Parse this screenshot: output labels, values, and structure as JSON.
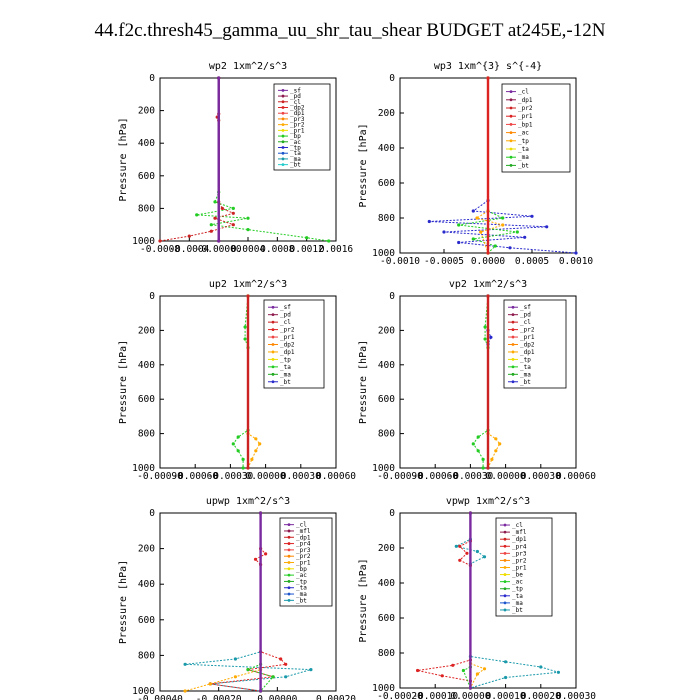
{
  "title": "44.f2c.thresh45_gamma_uu_shr_tau_shear  BUDGET at245E,-12N",
  "chart_data": [
    {
      "type": "line",
      "title": "wp2   1xm^2/s^3",
      "ylabel": "Pressure [hPa]",
      "ylim": [
        1000,
        0
      ],
      "xlim": [
        -0.0008,
        0.0016
      ],
      "xticks": [
        "-0.0008",
        "-0.0004",
        "-0.00000",
        "0.0004",
        "0.0008",
        "0.0012",
        "0.0016"
      ],
      "yticks": [
        "0",
        "200",
        "400",
        "600",
        "800",
        "1000"
      ],
      "legend": {
        "position": "top-right",
        "entries": [
          "_sf",
          "_pd",
          "_cl",
          "_dp2",
          "_dp1",
          "_pr3",
          "_pr2",
          "_pr1",
          "_bp",
          "_ac",
          "_tp",
          "_ta",
          "_ma",
          "_bt"
        ]
      },
      "series": [
        {
          "name": "_ac",
          "color": "#22cc22",
          "points": [
            [
              0,
              0
            ],
            [
              0,
              700
            ],
            [
              -5e-05,
              760
            ],
            [
              0.0002,
              800
            ],
            [
              -0.0003,
              840
            ],
            [
              0.0004,
              860
            ],
            [
              -0.0001,
              900
            ],
            [
              0.0004,
              930
            ],
            [
              0.0012,
              980
            ],
            [
              0.0015,
              1000
            ]
          ]
        },
        {
          "name": "_dp1",
          "color": "#cc2222",
          "points": [
            [
              0,
              0
            ],
            [
              0,
              220
            ],
            [
              -2e-05,
              240
            ],
            [
              0,
              260
            ],
            [
              0,
              760
            ],
            [
              5e-05,
              800
            ],
            [
              0.0002,
              830
            ],
            [
              -5e-05,
              860
            ],
            [
              0.0002,
              900
            ],
            [
              -0.0001,
              940
            ],
            [
              -0.0004,
              970
            ],
            [
              -0.0008,
              1000
            ]
          ]
        },
        {
          "name": "_pd",
          "color": "#8e1a4e",
          "points": [
            [
              0,
              0
            ],
            [
              0,
              1000
            ]
          ]
        },
        {
          "name": "_sf",
          "color": "#7a2a9e",
          "points": [
            [
              0,
              0
            ],
            [
              0,
              1000
            ]
          ]
        }
      ]
    },
    {
      "type": "line",
      "title": "wp3   1xm^{3} s^{-4}",
      "ylabel": "Pressure [hPa]",
      "ylim": [
        1000,
        0
      ],
      "xlim": [
        -0.0012,
        0.0012
      ],
      "xticks": [
        "-0.0010",
        "-0.0005",
        "0.0000",
        "0.0005",
        "0.0010"
      ],
      "yticks": [
        "0",
        "200",
        "400",
        "600",
        "800",
        "1000"
      ],
      "legend": {
        "position": "top-right",
        "entries": [
          "_cl",
          "_dp1",
          "_pr2",
          "_pr1",
          "_bp1",
          "_ac",
          "_tp",
          "_ta",
          "_ma",
          "_bt"
        ]
      },
      "series": [
        {
          "name": "_tp",
          "color": "#2a2acc",
          "points": [
            [
              0,
              0
            ],
            [
              0,
              700
            ],
            [
              -0.0002,
              760
            ],
            [
              0.0006,
              790
            ],
            [
              -0.0008,
              820
            ],
            [
              0.0008,
              850
            ],
            [
              -0.0006,
              880
            ],
            [
              0.0005,
              910
            ],
            [
              -0.0004,
              940
            ],
            [
              0.0003,
              970
            ],
            [
              0.0012,
              1000
            ]
          ]
        },
        {
          "name": "_ac",
          "color": "#22cc22",
          "points": [
            [
              0,
              0
            ],
            [
              0,
              760
            ],
            [
              0.0002,
              800
            ],
            [
              -0.0004,
              840
            ],
            [
              0.0004,
              880
            ],
            [
              -0.0002,
              920
            ],
            [
              0.0001,
              960
            ],
            [
              0,
              1000
            ]
          ]
        },
        {
          "name": "_pr2",
          "color": "#ffaa00",
          "points": [
            [
              0,
              0
            ],
            [
              0,
              760
            ],
            [
              -0.00015,
              800
            ],
            [
              0.0002,
              840
            ],
            [
              -0.0001,
              880
            ],
            [
              0,
              1000
            ]
          ]
        },
        {
          "name": "_dp1",
          "color": "#dd2222",
          "points": [
            [
              0,
              0
            ],
            [
              0,
              1000
            ]
          ]
        }
      ]
    },
    {
      "type": "line",
      "title": "up2   1xm^2/s^3",
      "ylabel": "Pressure [hPa]",
      "ylim": [
        1000,
        0
      ],
      "xlim": [
        -0.0009,
        0.0009
      ],
      "xticks": [
        "-0.00090",
        "-0.00060",
        "-0.00030",
        "0.00000",
        "0.00030",
        "0.00060"
      ],
      "yticks": [
        "0",
        "200",
        "400",
        "600",
        "800",
        "1000"
      ],
      "legend": {
        "position": "top-right",
        "entries": [
          "_sf",
          "_pd",
          "_cl",
          "_pr2",
          "_pr1",
          "_dp2",
          "_dp1",
          "_tp",
          "_ta",
          "_ma",
          "_bt"
        ]
      },
      "series": [
        {
          "name": "_dp1",
          "color": "#22cc22",
          "points": [
            [
              0,
              0
            ],
            [
              -3e-05,
              180
            ],
            [
              -3e-05,
              250
            ],
            [
              0,
              300
            ],
            [
              0,
              780
            ],
            [
              -0.0001,
              820
            ],
            [
              -0.00015,
              860
            ],
            [
              -0.0001,
              900
            ],
            [
              -5e-05,
              950
            ],
            [
              -5e-05,
              1000
            ]
          ]
        },
        {
          "name": "_pr2",
          "color": "#ffaa00",
          "points": [
            [
              0,
              0
            ],
            [
              0,
              800
            ],
            [
              8e-05,
              830
            ],
            [
              0.00012,
              860
            ],
            [
              8e-05,
              900
            ],
            [
              4e-05,
              950
            ],
            [
              0,
              1000
            ]
          ]
        },
        {
          "name": "_pd",
          "color": "#cc2222",
          "points": [
            [
              0,
              0
            ],
            [
              0,
              1000
            ]
          ]
        }
      ]
    },
    {
      "type": "line",
      "title": "vp2   1xm^2/s^3",
      "ylabel": "Pressure [hPa]",
      "ylim": [
        1000,
        0
      ],
      "xlim": [
        -0.0009,
        0.0009
      ],
      "xticks": [
        "-0.00090",
        "-0.00060",
        "-0.00030",
        "0.00000",
        "0.00030",
        "0.00060"
      ],
      "yticks": [
        "0",
        "200",
        "400",
        "600",
        "800",
        "1000"
      ],
      "legend": {
        "position": "top-right",
        "entries": [
          "_sf",
          "_pd",
          "_cl",
          "_pr2",
          "_pr1",
          "_dp2",
          "_dp1",
          "_tp",
          "_ta",
          "_ma",
          "_bt"
        ]
      },
      "series": [
        {
          "name": "_dp1",
          "color": "#22cc22",
          "points": [
            [
              0,
              0
            ],
            [
              -3e-05,
              180
            ],
            [
              -3e-05,
              250
            ],
            [
              0,
              300
            ],
            [
              0,
              780
            ],
            [
              -0.0001,
              820
            ],
            [
              -0.00015,
              860
            ],
            [
              -0.0001,
              900
            ],
            [
              -5e-05,
              950
            ],
            [
              -5e-05,
              1000
            ]
          ]
        },
        {
          "name": "_pr2",
          "color": "#ffaa00",
          "points": [
            [
              0,
              0
            ],
            [
              0,
              800
            ],
            [
              8e-05,
              830
            ],
            [
              0.00012,
              860
            ],
            [
              8e-05,
              900
            ],
            [
              4e-05,
              950
            ],
            [
              0,
              1000
            ]
          ]
        },
        {
          "name": "_tp",
          "color": "#2a2acc",
          "points": [
            [
              0,
              0
            ],
            [
              0,
              200
            ],
            [
              3e-05,
              240
            ],
            [
              0,
              280
            ],
            [
              0,
              1000
            ]
          ]
        },
        {
          "name": "_pd",
          "color": "#cc2222",
          "points": [
            [
              0,
              0
            ],
            [
              0,
              1000
            ]
          ]
        }
      ]
    },
    {
      "type": "line",
      "title": "upwp   1xm^2/s^3",
      "ylabel": "Pressure [hPa]",
      "ylim": [
        1000,
        0
      ],
      "xlim": [
        -0.0004,
        0.0003
      ],
      "xticks": [
        "-0.00040",
        "-0.00020",
        "0.00000",
        "0.00020"
      ],
      "yticks": [
        "0",
        "200",
        "400",
        "600",
        "800",
        "1000"
      ],
      "legend": {
        "position": "top-right",
        "entries": [
          "_cl",
          "_mfl",
          "_dp1",
          "_pr4",
          "_pr3",
          "_pr2",
          "_pr1",
          "_bp",
          "_ac",
          "_tp",
          "_ta",
          "_ma",
          "_bt"
        ]
      },
      "series": [
        {
          "name": "_tp",
          "color": "#1a99aa",
          "points": [
            [
              0,
              0
            ],
            [
              0,
              780
            ],
            [
              -0.0001,
              820
            ],
            [
              -0.0003,
              850
            ],
            [
              0.0002,
              880
            ],
            [
              0.0001,
              920
            ],
            [
              -0.0002,
              960
            ],
            [
              0,
              1000
            ]
          ]
        },
        {
          "name": "_pr4",
          "color": "#dd2222",
          "points": [
            [
              0,
              0
            ],
            [
              0,
              200
            ],
            [
              2e-05,
              230
            ],
            [
              -2e-05,
              260
            ],
            [
              0,
              290
            ],
            [
              0,
              780
            ],
            [
              8e-05,
              820
            ],
            [
              0.0001,
              850
            ],
            [
              -5e-05,
              880
            ],
            [
              5e-05,
              920
            ],
            [
              -0.0002,
              960
            ],
            [
              0,
              1000
            ]
          ]
        },
        {
          "name": "_pr2",
          "color": "#ffaa00",
          "points": [
            [
              0,
              0
            ],
            [
              0,
              880
            ],
            [
              -0.0001,
              920
            ],
            [
              -0.0002,
              960
            ],
            [
              -0.0003,
              1000
            ]
          ]
        },
        {
          "name": "_ac",
          "color": "#22cc22",
          "points": [
            [
              0,
              0
            ],
            [
              0,
              850
            ],
            [
              -5e-05,
              880
            ],
            [
              5e-05,
              920
            ],
            [
              0,
              1000
            ]
          ]
        },
        {
          "name": "_cl",
          "color": "#7a2a9e",
          "points": [
            [
              0,
              0
            ],
            [
              0,
              1000
            ]
          ]
        }
      ]
    },
    {
      "type": "line",
      "title": "vpwp   1xm^2/s^3",
      "ylabel": "Pressure [hPa]",
      "ylim": [
        1000,
        0
      ],
      "xlim": [
        -0.0002,
        0.0003
      ],
      "xticks": [
        "-0.00020",
        "-0.00010",
        "0.00000",
        "0.00010",
        "0.00020",
        "0.00030"
      ],
      "yticks": [
        "0",
        "200",
        "400",
        "600",
        "800",
        "1000"
      ],
      "legend": {
        "position": "top-right",
        "entries": [
          "_cl",
          "_mfl",
          "_dp1",
          "_pr4",
          "_pr3",
          "_pr2",
          "_pr1",
          "_be",
          "_ac",
          "_tp",
          "_ta",
          "_ma",
          "_bt"
        ]
      },
      "series": [
        {
          "name": "_tp",
          "color": "#1a99aa",
          "points": [
            [
              0,
              0
            ],
            [
              0,
              150
            ],
            [
              -4e-05,
              190
            ],
            [
              2e-05,
              220
            ],
            [
              4e-05,
              250
            ],
            [
              0,
              290
            ],
            [
              0,
              820
            ],
            [
              0.0001,
              850
            ],
            [
              0.0002,
              880
            ],
            [
              0.00025,
              910
            ],
            [
              0.0001,
              940
            ],
            [
              0,
              1000
            ]
          ]
        },
        {
          "name": "_pr4",
          "color": "#dd2222",
          "points": [
            [
              0,
              0
            ],
            [
              0,
              160
            ],
            [
              -3e-05,
              190
            ],
            [
              -1e-05,
              230
            ],
            [
              -3e-05,
              270
            ],
            [
              0,
              300
            ],
            [
              0,
              840
            ],
            [
              -5e-05,
              870
            ],
            [
              -0.00015,
              900
            ],
            [
              -8e-05,
              930
            ],
            [
              0,
              960
            ],
            [
              0,
              1000
            ]
          ]
        },
        {
          "name": "_pr2",
          "color": "#ffaa00",
          "points": [
            [
              0,
              0
            ],
            [
              0,
              860
            ],
            [
              4e-05,
              890
            ],
            [
              2e-05,
              920
            ],
            [
              0,
              1000
            ]
          ]
        },
        {
          "name": "_ac",
          "color": "#22cc22",
          "points": [
            [
              0,
              0
            ],
            [
              0,
              880
            ],
            [
              -2e-05,
              900
            ],
            [
              0,
              1000
            ]
          ]
        },
        {
          "name": "_cl",
          "color": "#7a2a9e",
          "points": [
            [
              0,
              0
            ],
            [
              0,
              1000
            ]
          ]
        }
      ]
    }
  ]
}
